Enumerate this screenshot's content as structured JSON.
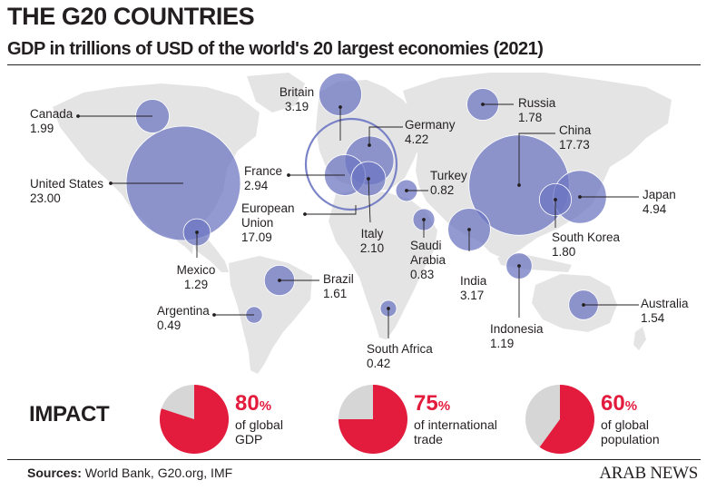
{
  "header": {
    "title": "THE G20 COUNTRIES",
    "subtitle": "GDP in trillions of USD of the world's 20 largest economies (2021)"
  },
  "chart_data": {
    "type": "bubble-map",
    "unit": "trillions of USD",
    "year": 2021,
    "points": [
      {
        "name": "Canada",
        "value": "1.99"
      },
      {
        "name": "United States",
        "value": "23.00"
      },
      {
        "name": "Mexico",
        "value": "1.29"
      },
      {
        "name": "Brazil",
        "value": "1.61"
      },
      {
        "name": "Argentina",
        "value": "0.49"
      },
      {
        "name": "Britain",
        "value": "3.19"
      },
      {
        "name": "Germany",
        "value": "4.22"
      },
      {
        "name": "France",
        "value": "2.94"
      },
      {
        "name": "European Union",
        "value": "17.09"
      },
      {
        "name": "Italy",
        "value": "2.10"
      },
      {
        "name": "Turkey",
        "value": "0.82"
      },
      {
        "name": "Saudi Arabia",
        "value": "0.83"
      },
      {
        "name": "South Africa",
        "value": "0.42"
      },
      {
        "name": "Russia",
        "value": "1.78"
      },
      {
        "name": "China",
        "value": "17.73"
      },
      {
        "name": "Japan",
        "value": "4.94"
      },
      {
        "name": "South Korea",
        "value": "1.80"
      },
      {
        "name": "India",
        "value": "3.17"
      },
      {
        "name": "Indonesia",
        "value": "1.19"
      },
      {
        "name": "Australia",
        "value": "1.54"
      }
    ],
    "impact": [
      {
        "percent": 80,
        "label": "of global GDP"
      },
      {
        "percent": 75,
        "label": "of international trade"
      },
      {
        "percent": 60,
        "label": "of global population"
      }
    ]
  },
  "impact": {
    "heading": "IMPACT",
    "items": [
      {
        "percent": "80",
        "sign": "%",
        "line1": "of global",
        "line2": "GDP"
      },
      {
        "percent": "75",
        "sign": "%",
        "line1": "of international",
        "line2": "trade"
      },
      {
        "percent": "60",
        "sign": "%",
        "line1": "of global",
        "line2": "population"
      }
    ]
  },
  "footer": {
    "sources_label": "Sources:",
    "sources_text": " World Bank, G20.org, IMF",
    "brand": "ARAB NEWS"
  },
  "colors": {
    "bubble": "#6d77c2",
    "land": "#e4e4e4",
    "impact_red": "#e31b3d",
    "impact_grey": "#d6d6d6"
  }
}
